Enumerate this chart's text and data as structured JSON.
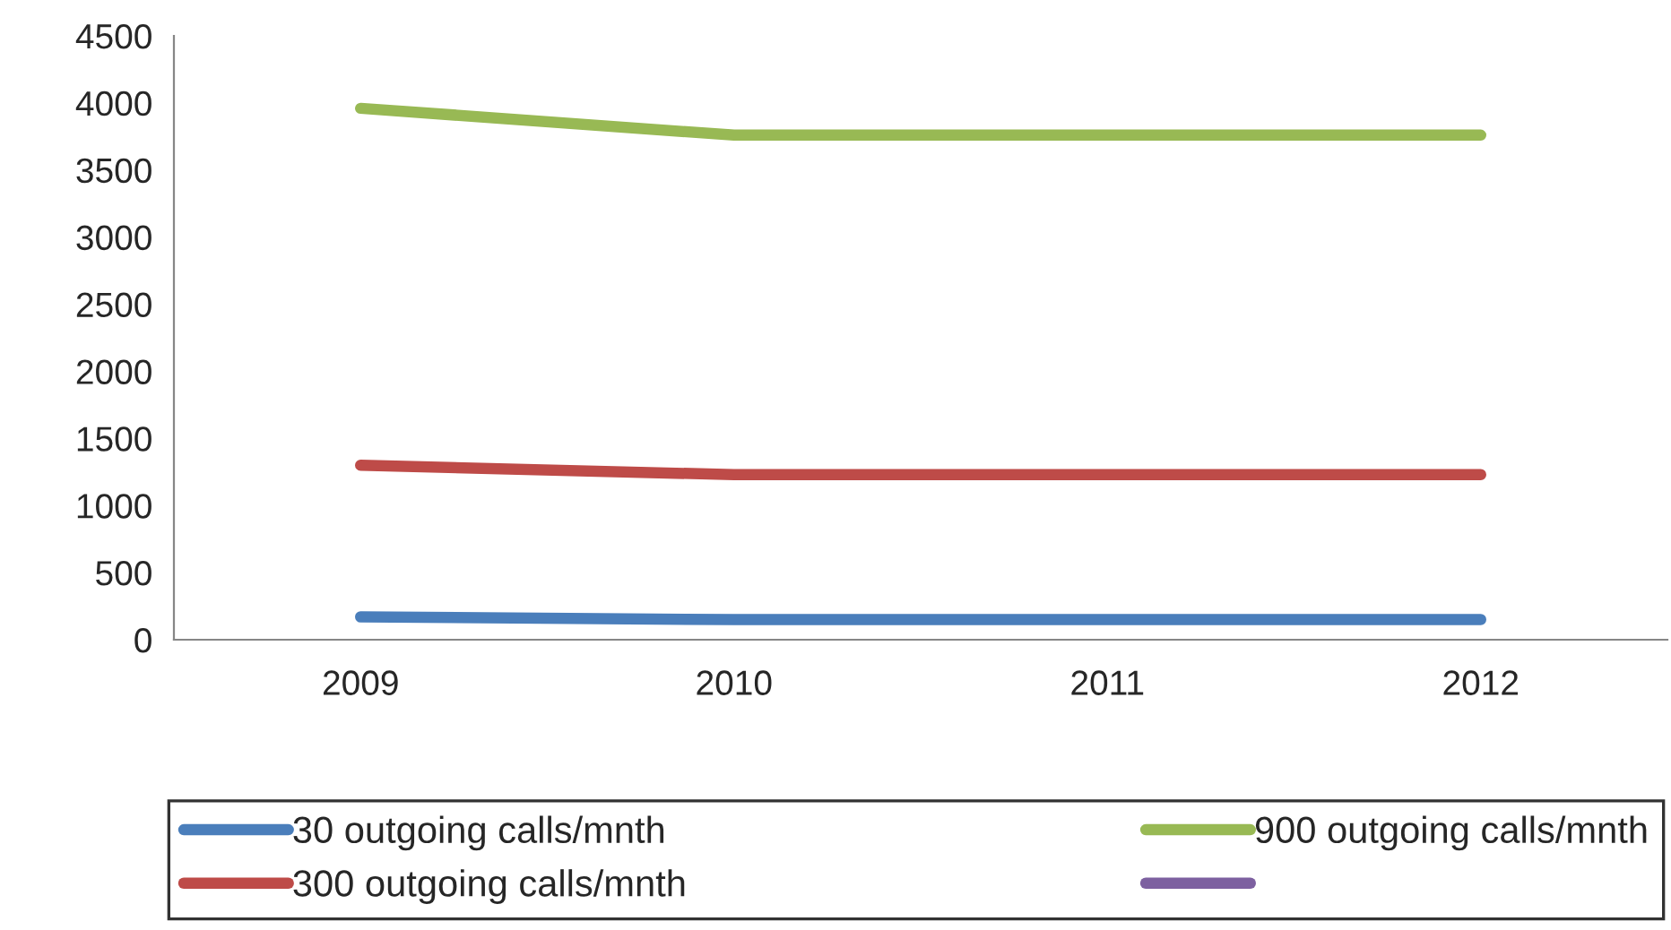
{
  "chart_data": {
    "type": "line",
    "categories": [
      "2009",
      "2010",
      "2011",
      "2012"
    ],
    "series": [
      {
        "name": "30 outgoing calls/mnth",
        "color": "#4a7ebb",
        "values": [
          170,
          150,
          150,
          150
        ]
      },
      {
        "name": "300 outgoing calls/mnth",
        "color": "#be4b48",
        "values": [
          1300,
          1230,
          1230,
          1230
        ]
      },
      {
        "name": "900 outgoing calls/mnth",
        "color": "#98b954",
        "values": [
          3960,
          3760,
          3760,
          3760
        ]
      },
      {
        "color": "#7d60a0",
        "values": [
          null,
          null,
          null,
          null
        ]
      }
    ],
    "ylim": [
      0,
      4500
    ],
    "yticks": [
      0,
      500,
      1000,
      1500,
      2000,
      2500,
      3000,
      3500,
      4000,
      4500
    ],
    "grid": false,
    "legend": "bottom",
    "marker": "none",
    "line_style": "solid"
  }
}
